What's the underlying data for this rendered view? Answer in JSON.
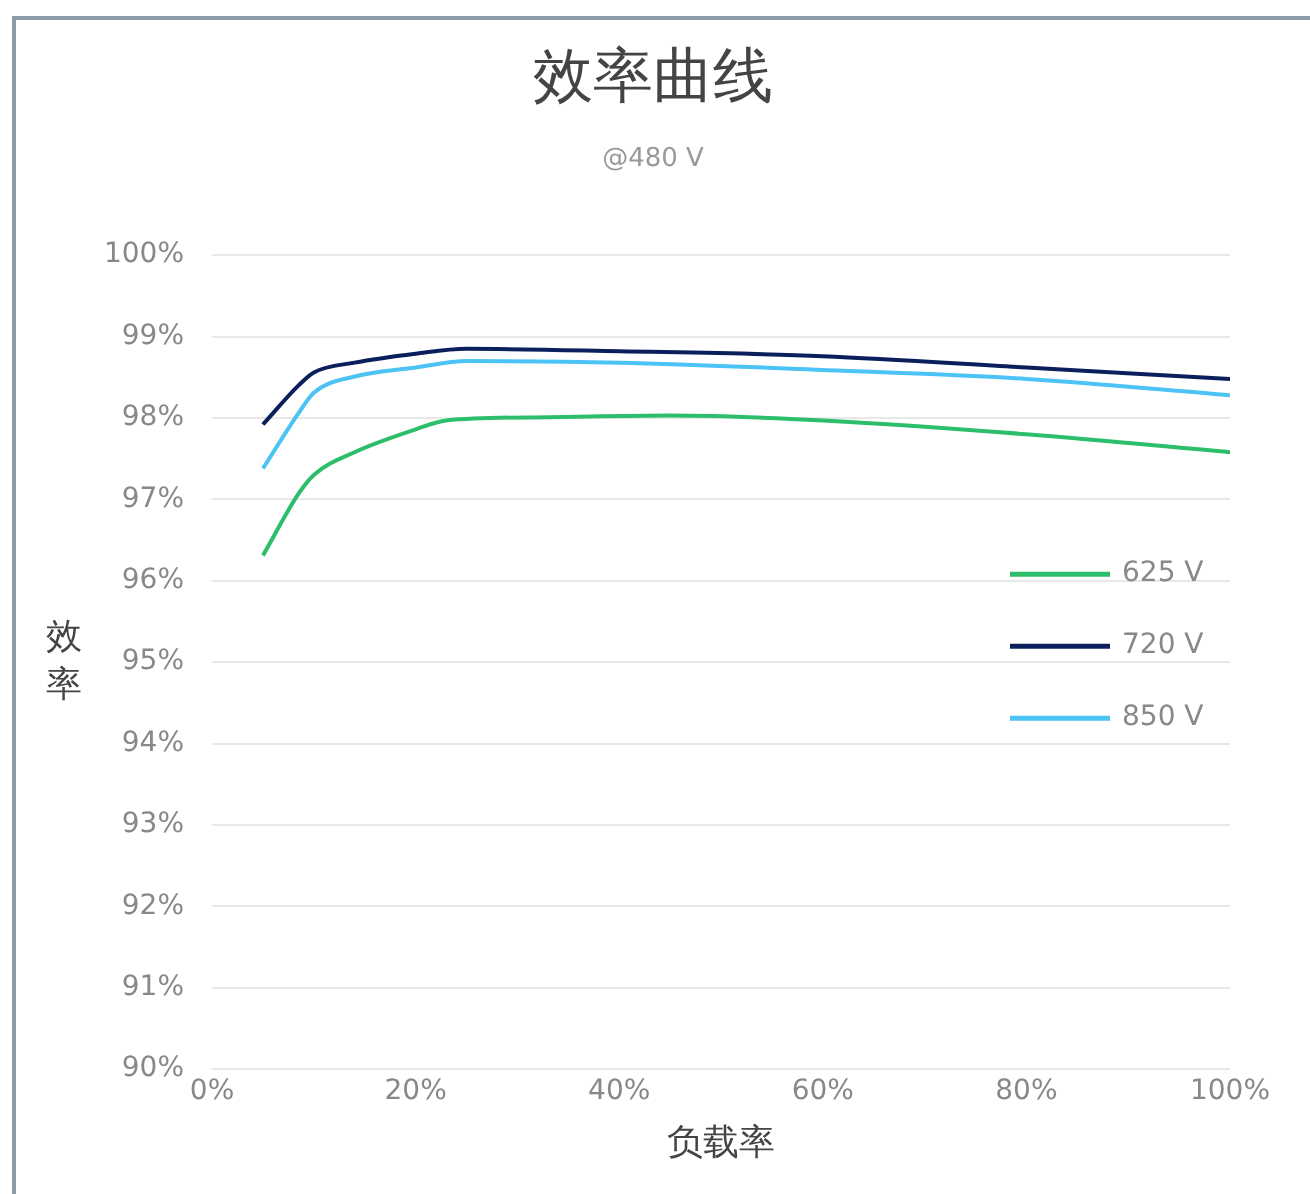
{
  "chart_data": {
    "type": "line",
    "title": "效率曲线",
    "subtitle": "@480 V",
    "xlabel": "负载率",
    "ylabel": "效率",
    "series": [
      {
        "name": "625 V",
        "color": "#2dbe6c",
        "x": [
          5,
          8.5,
          10,
          14,
          20,
          23,
          33,
          45,
          60,
          80,
          100
        ],
        "values": [
          96.31,
          97.07,
          97.3,
          97.58,
          97.86,
          97.97,
          98.01,
          98.03,
          97.97,
          97.8,
          97.58
        ]
      },
      {
        "name": "720 V",
        "color": "#0b1f5c",
        "x": [
          5,
          8.5,
          10,
          14,
          20,
          25,
          40,
          60,
          80,
          100
        ],
        "values": [
          97.92,
          98.4,
          98.56,
          98.68,
          98.79,
          98.85,
          98.82,
          98.76,
          98.62,
          98.48
        ]
      },
      {
        "name": "850 V",
        "color": "#4cc3f5",
        "x": [
          5,
          8.5,
          10,
          14,
          20,
          25,
          40,
          60,
          80,
          100
        ],
        "values": [
          97.38,
          98.06,
          98.31,
          98.51,
          98.62,
          98.7,
          98.68,
          98.59,
          98.48,
          98.28
        ]
      }
    ],
    "xlim": [
      0,
      100
    ],
    "xticks": [
      {
        "value": 0,
        "label": "0%"
      },
      {
        "value": 20,
        "label": "20%"
      },
      {
        "value": 40,
        "label": "40%"
      },
      {
        "value": 60,
        "label": "60%"
      },
      {
        "value": 80,
        "label": "80%"
      },
      {
        "value": 100,
        "label": "100%"
      }
    ],
    "ylim": [
      90,
      100
    ],
    "yticks": [
      {
        "value": 90,
        "label": "90%"
      },
      {
        "value": 91,
        "label": "91%"
      },
      {
        "value": 92,
        "label": "92%"
      },
      {
        "value": 93,
        "label": "93%"
      },
      {
        "value": 94,
        "label": "94%"
      },
      {
        "value": 95,
        "label": "95%"
      },
      {
        "value": 96,
        "label": "96%"
      },
      {
        "value": 97,
        "label": "97%"
      },
      {
        "value": 98,
        "label": "98%"
      },
      {
        "value": 99,
        "label": "99%"
      },
      {
        "value": 100,
        "label": "100%"
      }
    ],
    "grid": "y",
    "legend": "right",
    "marker": "none",
    "line_style": "solid"
  }
}
